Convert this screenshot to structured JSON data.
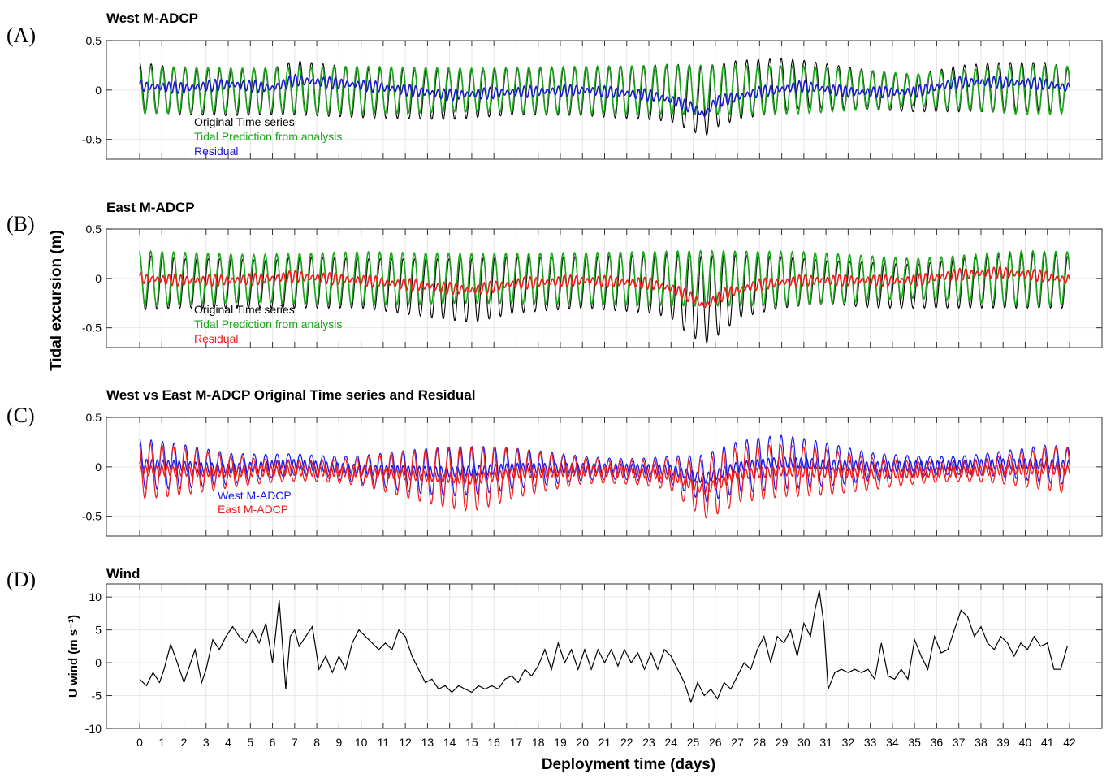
{
  "figure": {
    "shared_ylabel": "Tidal  excursion (m)",
    "xlabel": "Deployment time (days)",
    "x_ticks": [
      0,
      1,
      2,
      3,
      4,
      5,
      6,
      7,
      8,
      9,
      10,
      11,
      12,
      13,
      14,
      15,
      16,
      17,
      18,
      19,
      20,
      21,
      22,
      23,
      24,
      25,
      26,
      27,
      28,
      29,
      30,
      31,
      32,
      33,
      34,
      35,
      36,
      37,
      38,
      39,
      40,
      41,
      42
    ]
  },
  "colors": {
    "original": "#000000",
    "tidal": "#1aa51a",
    "residual_west": "#1a1acc",
    "residual_east": "#ee1c1c",
    "west": "#1a1aee",
    "east": "#ee1c1c",
    "wind": "#000000"
  },
  "chart_data": [
    {
      "panel": "(A)",
      "type": "line",
      "title": "West M-ADCP",
      "xlim": [
        0,
        42
      ],
      "ylim": [
        -0.7,
        0.5
      ],
      "y_ticks": [
        "0.5",
        "0",
        "-0.5"
      ],
      "grid": true,
      "legend_position": "lower-left",
      "series": [
        {
          "name": "Original Time series",
          "color": "#000000",
          "envelope_x": [
            0,
            2,
            4,
            6,
            7,
            10,
            14,
            17,
            20,
            23,
            24,
            25,
            25.5,
            26,
            27,
            29,
            30,
            33,
            35,
            37,
            39,
            41,
            42
          ],
          "envelope_upper": [
            0.28,
            0.22,
            0.2,
            0.22,
            0.3,
            0.22,
            0.2,
            0.22,
            0.23,
            0.25,
            0.26,
            0.25,
            0.24,
            0.26,
            0.3,
            0.32,
            0.3,
            0.2,
            0.15,
            0.25,
            0.28,
            0.28,
            0.22
          ],
          "envelope_lower": [
            -0.22,
            -0.25,
            -0.26,
            -0.25,
            -0.25,
            -0.28,
            -0.3,
            -0.25,
            -0.26,
            -0.3,
            -0.32,
            -0.42,
            -0.48,
            -0.38,
            -0.3,
            -0.22,
            -0.18,
            -0.2,
            -0.22,
            -0.22,
            -0.22,
            -0.22,
            -0.2
          ]
        },
        {
          "name": "Tidal Prediction from analysis",
          "color": "#1aa51a",
          "amplitude_x": [
            0,
            5,
            10,
            15,
            20,
            25,
            30,
            35,
            40,
            42
          ],
          "amplitude": [
            0.24,
            0.22,
            0.24,
            0.22,
            0.24,
            0.25,
            0.24,
            0.16,
            0.25,
            0.24
          ]
        },
        {
          "name": "Residual",
          "color": "#1a1acc",
          "x": [
            0,
            2,
            4,
            6,
            7,
            10,
            14,
            17,
            20,
            23,
            24,
            25,
            25.5,
            26,
            28,
            30,
            32,
            35,
            37,
            39,
            41,
            42
          ],
          "y": [
            0.04,
            0.02,
            0.06,
            0.02,
            0.1,
            0.05,
            -0.05,
            -0.02,
            0.0,
            -0.05,
            -0.1,
            -0.18,
            -0.25,
            -0.12,
            -0.02,
            0.04,
            -0.02,
            -0.02,
            0.08,
            0.08,
            0.06,
            0.02
          ]
        }
      ]
    },
    {
      "panel": "(B)",
      "type": "line",
      "title": "East M-ADCP",
      "xlim": [
        0,
        42
      ],
      "ylim": [
        -0.7,
        0.5
      ],
      "y_ticks": [
        "0.5",
        "0",
        "-0.5"
      ],
      "grid": true,
      "legend_position": "lower-left",
      "series": [
        {
          "name": "Original Time series",
          "color": "#000000",
          "envelope_x": [
            0,
            2,
            4,
            6,
            7,
            10,
            14,
            15,
            17,
            20,
            23,
            24,
            24.7,
            25.5,
            26.5,
            27,
            29,
            31,
            33,
            35,
            37,
            39,
            41,
            42
          ],
          "envelope_upper": [
            0.24,
            0.2,
            0.2,
            0.18,
            0.22,
            0.2,
            0.2,
            0.2,
            0.22,
            0.22,
            0.24,
            0.25,
            0.24,
            0.22,
            0.24,
            0.24,
            0.22,
            0.18,
            0.16,
            0.14,
            0.2,
            0.24,
            0.26,
            0.22
          ],
          "envelope_lower": [
            -0.32,
            -0.3,
            -0.3,
            -0.3,
            -0.3,
            -0.3,
            -0.42,
            -0.45,
            -0.35,
            -0.3,
            -0.35,
            -0.4,
            -0.55,
            -0.67,
            -0.52,
            -0.4,
            -0.3,
            -0.25,
            -0.3,
            -0.3,
            -0.3,
            -0.3,
            -0.3,
            -0.3
          ]
        },
        {
          "name": "Tidal Prediction from analysis",
          "color": "#1aa51a",
          "amplitude_x": [
            0,
            5,
            10,
            15,
            20,
            25,
            30,
            35,
            40,
            42
          ],
          "amplitude": [
            0.28,
            0.24,
            0.27,
            0.25,
            0.26,
            0.28,
            0.27,
            0.2,
            0.28,
            0.27
          ]
        },
        {
          "name": "Residual",
          "color": "#ee1c1c",
          "x": [
            0,
            2,
            4,
            6,
            7,
            10,
            13,
            15,
            17,
            20,
            23,
            24,
            25,
            25.5,
            26.5,
            28,
            30,
            32,
            35,
            37,
            39,
            41,
            42
          ],
          "y": [
            0.0,
            -0.02,
            -0.02,
            0.0,
            0.02,
            -0.02,
            -0.08,
            -0.12,
            -0.05,
            -0.02,
            -0.05,
            -0.1,
            -0.2,
            -0.28,
            -0.15,
            -0.06,
            -0.02,
            -0.02,
            -0.02,
            0.04,
            0.06,
            0.02,
            -0.02
          ]
        }
      ]
    },
    {
      "panel": "(C)",
      "type": "line",
      "title": "West vs East M-ADCP Original Time series and Residual",
      "xlim": [
        0,
        42
      ],
      "ylim": [
        -0.7,
        0.5
      ],
      "y_ticks": [
        "0.5",
        "0",
        "-0.5"
      ],
      "grid": true,
      "legend_position": "lower-left",
      "series": [
        {
          "name": "West M-ADCP",
          "color": "#1a1aee",
          "envelope_x": [
            0,
            4,
            7,
            10,
            14,
            17,
            20,
            24,
            25.5,
            27,
            29,
            33,
            37,
            39,
            41,
            42
          ],
          "envelope_upper": [
            0.28,
            0.22,
            0.3,
            0.22,
            0.2,
            0.22,
            0.23,
            0.26,
            0.24,
            0.3,
            0.32,
            0.2,
            0.25,
            0.28,
            0.28,
            0.22
          ],
          "envelope_lower": [
            -0.22,
            -0.26,
            -0.25,
            -0.28,
            -0.3,
            -0.25,
            -0.26,
            -0.32,
            -0.48,
            -0.3,
            -0.22,
            -0.2,
            -0.22,
            -0.22,
            -0.22,
            -0.2
          ]
        },
        {
          "name": "East M-ADCP",
          "color": "#ee1c1c",
          "envelope_x": [
            0,
            4,
            7,
            10,
            14,
            15,
            17,
            20,
            24,
            24.7,
            25.5,
            26.5,
            27,
            29,
            33,
            37,
            39,
            41,
            42
          ],
          "envelope_upper": [
            0.24,
            0.2,
            0.22,
            0.2,
            0.2,
            0.2,
            0.22,
            0.22,
            0.25,
            0.24,
            0.22,
            0.24,
            0.24,
            0.22,
            0.16,
            0.2,
            0.24,
            0.26,
            0.22
          ],
          "envelope_lower": [
            -0.32,
            -0.3,
            -0.3,
            -0.3,
            -0.42,
            -0.45,
            -0.35,
            -0.3,
            -0.4,
            -0.55,
            -0.67,
            -0.52,
            -0.4,
            -0.3,
            -0.3,
            -0.3,
            -0.3,
            -0.3,
            -0.3
          ]
        }
      ]
    },
    {
      "panel": "(D)",
      "type": "line",
      "title": "Wind",
      "ylabel": "U wind (m s⁻¹)",
      "xlabel": "Deployment time (days)",
      "xlim": [
        0,
        42
      ],
      "ylim": [
        -10,
        12
      ],
      "y_ticks": [
        "10",
        "5",
        "0",
        "-5",
        "-10"
      ],
      "grid": true,
      "series": [
        {
          "name": "",
          "color": "#000000",
          "x": [
            0,
            0.3,
            0.6,
            0.9,
            1.1,
            1.4,
            1.7,
            2.0,
            2.2,
            2.5,
            2.8,
            3.0,
            3.3,
            3.6,
            3.9,
            4.2,
            4.5,
            4.8,
            5.1,
            5.4,
            5.7,
            6.0,
            6.3,
            6.6,
            6.8,
            7.0,
            7.2,
            7.5,
            7.8,
            8.1,
            8.4,
            8.7,
            9.0,
            9.3,
            9.6,
            9.9,
            10.2,
            10.5,
            10.8,
            11.1,
            11.4,
            11.7,
            12.0,
            12.3,
            12.6,
            12.9,
            13.2,
            13.5,
            13.8,
            14.1,
            14.4,
            14.7,
            15.0,
            15.3,
            15.6,
            15.9,
            16.2,
            16.5,
            16.8,
            17.1,
            17.4,
            17.7,
            18.0,
            18.3,
            18.6,
            18.9,
            19.2,
            19.5,
            19.8,
            20.1,
            20.4,
            20.7,
            21.0,
            21.3,
            21.6,
            21.9,
            22.2,
            22.5,
            22.8,
            23.1,
            23.4,
            23.7,
            24.0,
            24.3,
            24.6,
            24.9,
            25.2,
            25.5,
            25.8,
            26.1,
            26.4,
            26.7,
            27.0,
            27.3,
            27.6,
            27.9,
            28.2,
            28.5,
            28.8,
            29.1,
            29.4,
            29.7,
            30.0,
            30.3,
            30.5,
            30.7,
            30.9,
            31.1,
            31.4,
            31.7,
            32.0,
            32.3,
            32.6,
            32.9,
            33.2,
            33.5,
            33.8,
            34.1,
            34.4,
            34.7,
            35.0,
            35.3,
            35.6,
            35.9,
            36.2,
            36.5,
            36.8,
            37.1,
            37.4,
            37.7,
            38.0,
            38.3,
            38.6,
            38.9,
            39.2,
            39.5,
            39.8,
            40.1,
            40.4,
            40.7,
            41.0,
            41.3,
            41.6,
            41.9
          ],
          "y": [
            -2.5,
            -3.5,
            -1.5,
            -3.0,
            -1.0,
            2.8,
            0.0,
            -3.0,
            -1.0,
            2.0,
            -3.0,
            -1.0,
            3.5,
            2.0,
            4.0,
            5.5,
            4.0,
            3.0,
            5.0,
            3.0,
            6.0,
            0.0,
            9.5,
            -4.0,
            4.0,
            5.0,
            2.5,
            4.0,
            5.5,
            -1.0,
            1.0,
            -1.5,
            1.0,
            -1.0,
            3.0,
            5.0,
            4.0,
            3.0,
            2.0,
            3.0,
            2.0,
            5.0,
            4.0,
            1.0,
            -1.0,
            -3.0,
            -2.5,
            -4.0,
            -3.5,
            -4.5,
            -3.5,
            -4.0,
            -4.5,
            -3.5,
            -4.0,
            -3.5,
            -4.0,
            -2.5,
            -2.0,
            -3.0,
            -1.0,
            -2.0,
            -0.5,
            2.0,
            -1.0,
            3.0,
            0.0,
            2.0,
            -1.0,
            2.0,
            -1.0,
            2.0,
            0.0,
            2.0,
            -0.5,
            2.0,
            0.0,
            1.5,
            -1.0,
            1.5,
            -1.0,
            2.0,
            1.0,
            -1.0,
            -3.0,
            -6.0,
            -3.0,
            -5.0,
            -4.0,
            -5.5,
            -3.0,
            -4.0,
            -2.0,
            0.0,
            -1.0,
            2.0,
            4.0,
            0.0,
            4.0,
            3.0,
            5.0,
            1.0,
            6.0,
            4.0,
            8.0,
            11.0,
            6.0,
            -4.0,
            -1.5,
            -1.0,
            -1.5,
            -1.0,
            -1.5,
            -1.0,
            -2.5,
            3.0,
            -2.0,
            -2.5,
            -1.0,
            -2.5,
            3.5,
            1.0,
            -1.0,
            4.0,
            1.5,
            2.0,
            5.0,
            8.0,
            7.0,
            4.0,
            5.5,
            3.0,
            2.0,
            4.0,
            3.0,
            1.0,
            3.0,
            2.0,
            4.0,
            2.5,
            3.0,
            -1.0,
            -1.0,
            2.5
          ]
        }
      ]
    }
  ]
}
